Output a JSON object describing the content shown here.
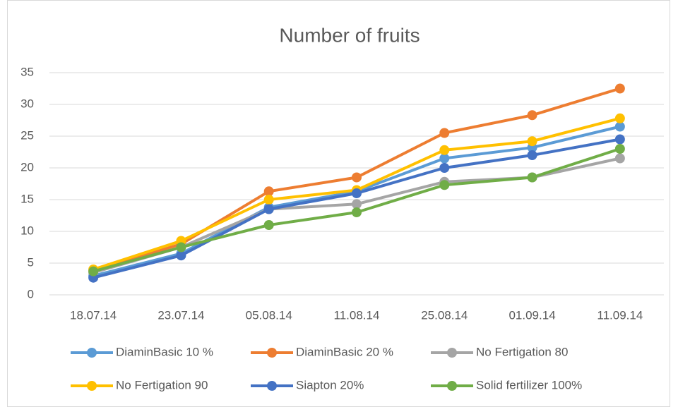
{
  "chart_data": {
    "type": "line",
    "title": "Number of fruits",
    "categories": [
      "18.07.14",
      "23.07.14",
      "05.08.14",
      "11.08.14",
      "25.08.14",
      "01.09.14",
      "11.09.14"
    ],
    "series": [
      {
        "name": "DiaminBasic 10 %",
        "color": "#5b9bd5",
        "values": [
          3.0,
          6.5,
          13.8,
          16.3,
          21.5,
          23.2,
          26.5
        ]
      },
      {
        "name": "DiaminBasic 20 %",
        "color": "#ed7d31",
        "values": [
          3.8,
          8.0,
          16.3,
          18.5,
          25.5,
          28.3,
          32.5
        ]
      },
      {
        "name": "No Fertigation 80",
        "color": "#a5a5a5",
        "values": [
          3.5,
          7.5,
          13.5,
          14.3,
          17.8,
          18.5,
          21.5
        ]
      },
      {
        "name": "No Fertigation 90",
        "color": "#ffc000",
        "values": [
          4.0,
          8.5,
          15.0,
          16.5,
          22.8,
          24.2,
          27.8
        ]
      },
      {
        "name": "Siapton 20%",
        "color": "#4472c4",
        "values": [
          2.7,
          6.2,
          13.5,
          16.0,
          20.0,
          22.0,
          24.5
        ]
      },
      {
        "name": "Solid fertilizer 100%",
        "color": "#70ad47",
        "values": [
          3.7,
          7.5,
          11.0,
          13.0,
          17.3,
          18.5,
          23.0
        ]
      }
    ],
    "ylim": [
      0,
      35
    ],
    "yticks": [
      0,
      5,
      10,
      15,
      20,
      25,
      30,
      35
    ],
    "grid": true,
    "legend": "bottom"
  }
}
